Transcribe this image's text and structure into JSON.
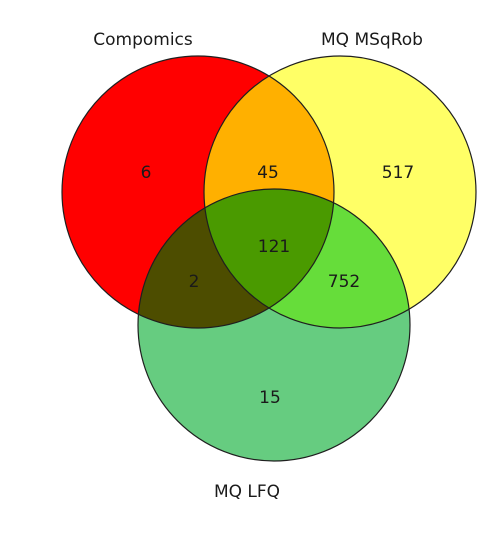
{
  "venn": {
    "sets": [
      {
        "key": "compomics",
        "label": "Compomics",
        "color": "#ff0000"
      },
      {
        "key": "msqrob",
        "label": "MQ MSqRob",
        "color": "#ffff66"
      },
      {
        "key": "lfq",
        "label": "MQ LFQ",
        "color": "#66cc80"
      }
    ],
    "regions": {
      "compomics_only": "6",
      "msqrob_only": "517",
      "lfq_only": "15",
      "compomics_msqrob": "45",
      "compomics_lfq": "2",
      "msqrob_lfq": "752",
      "all_three": "121"
    },
    "region_colors": {
      "compomics_msqrob": "#ffb000",
      "compomics_lfq": "#4d4d00",
      "msqrob_lfq": "#66dd3a",
      "all_three": "#4a9a00"
    }
  }
}
